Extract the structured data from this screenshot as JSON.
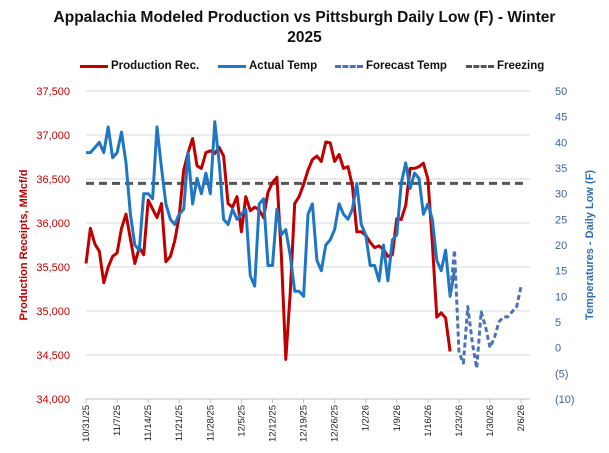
{
  "chart_data": {
    "type": "line",
    "title": "Appalachia Modeled Production vs Pittsburgh Daily Low (F) - Winter 2025",
    "title_line1": "Appalachia Modeled Production vs Pittsburgh Daily Low (F) - Winter",
    "title_line2": "2025",
    "ylabel": "Production  Receipts, MMcf/d",
    "y2label": "Temperatures - Daily Low (F)",
    "ylim": [
      34000,
      37500
    ],
    "y2lim": [
      -10,
      50
    ],
    "yticks": [
      "37,500",
      "37,000",
      "36,500",
      "36,000",
      "35,500",
      "35,000",
      "34,500",
      "34,000"
    ],
    "y2ticks": [
      "50",
      "45",
      "40",
      "35",
      "30",
      "25",
      "20",
      "15",
      "10",
      "5",
      "0",
      "(5)",
      "(10)"
    ],
    "xticks": [
      "10/31/25",
      "11/7/25",
      "11/14/25",
      "11/21/25",
      "11/28/25",
      "12/5/25",
      "12/12/25",
      "12/19/25",
      "12/26/25",
      "1/2/26",
      "1/9/26",
      "1/16/26",
      "1/23/26",
      "1/30/26",
      "2/6/26"
    ],
    "x_unit": "days since 10/31/25",
    "grid": true,
    "legend_position": "top",
    "legend": [
      {
        "name": "Production Rec.",
        "color": "#c00000",
        "style": "solid"
      },
      {
        "name": "Actual Temp",
        "color": "#1f77c4",
        "style": "solid"
      },
      {
        "name": "Forecast Temp",
        "color": "#4a72b8",
        "style": "dashed"
      },
      {
        "name": "Freezing",
        "color": "#555555",
        "style": "dashed"
      }
    ],
    "series": [
      {
        "name": "Production Rec.",
        "axis": "left",
        "color": "#c00000",
        "x": [
          0,
          1,
          2,
          3,
          4,
          5,
          6,
          7,
          8,
          9,
          10,
          11,
          12,
          13,
          14,
          15,
          16,
          17,
          18,
          19,
          20,
          21,
          22,
          23,
          24,
          25,
          26,
          27,
          28,
          29,
          30,
          31,
          32,
          33,
          34,
          35,
          36,
          37,
          38,
          39,
          40,
          41,
          42,
          43,
          44,
          45,
          46,
          47,
          48,
          49,
          50,
          51,
          52,
          53,
          54,
          55,
          56,
          57,
          58,
          59,
          60,
          61,
          62,
          63,
          64,
          65,
          66,
          67,
          68,
          69,
          70,
          71,
          72,
          73,
          74,
          75,
          76,
          77,
          78,
          79,
          80,
          81,
          82
        ],
        "values": [
          35540,
          35940,
          35760,
          35680,
          35320,
          35500,
          35620,
          35660,
          35940,
          36100,
          35820,
          35540,
          35720,
          35640,
          36260,
          36160,
          36060,
          36220,
          35560,
          35620,
          35800,
          36080,
          36600,
          36800,
          36960,
          36650,
          36620,
          36800,
          36820,
          36790,
          36860,
          36760,
          36220,
          36180,
          36300,
          35900,
          36300,
          36140,
          36180,
          36150,
          36060,
          36350,
          36460,
          36520,
          35620,
          34450,
          35200,
          36220,
          36300,
          36440,
          36600,
          36720,
          36760,
          36700,
          36920,
          36910,
          36700,
          36780,
          36620,
          36640,
          36420,
          35900,
          35900,
          35860,
          35780,
          35720,
          35740,
          35700,
          35620,
          35640,
          36050,
          36040,
          36200,
          36620,
          36620,
          36640,
          36680,
          36500,
          35780,
          34930,
          34980,
          34920,
          34540
        ]
      },
      {
        "name": "Actual Temp",
        "axis": "right",
        "color": "#1f77c4",
        "x": [
          0,
          1,
          2,
          3,
          4,
          5,
          6,
          7,
          8,
          9,
          10,
          11,
          12,
          13,
          14,
          15,
          16,
          17,
          18,
          19,
          20,
          21,
          22,
          23,
          24,
          25,
          26,
          27,
          28,
          29,
          30,
          31,
          32,
          33,
          34,
          35,
          36,
          37,
          38,
          39,
          40,
          41,
          42,
          43,
          44,
          45,
          46,
          47,
          48,
          49,
          50,
          51,
          52,
          53,
          54,
          55,
          56,
          57,
          58,
          59,
          60,
          61,
          62,
          63,
          64,
          65,
          66,
          67,
          68,
          69,
          70,
          71,
          72,
          73,
          74,
          75,
          76,
          77,
          78,
          79,
          80,
          81,
          82,
          83
        ],
        "values": [
          38,
          38,
          39,
          40,
          38,
          43,
          37,
          38,
          42,
          36,
          26,
          20,
          19,
          30,
          30,
          29,
          43,
          35,
          28,
          25,
          24,
          26,
          27,
          38,
          28,
          33,
          30,
          34,
          30,
          44,
          36,
          25,
          24,
          27,
          25,
          26,
          27,
          14,
          12,
          28,
          29,
          16,
          16,
          27,
          22,
          23,
          18,
          11,
          11,
          10,
          26,
          28,
          17,
          15,
          20,
          21,
          23,
          28,
          26,
          25,
          27,
          32,
          24,
          22,
          16,
          16,
          13,
          20,
          13,
          21,
          22,
          32,
          36,
          31,
          34,
          33,
          26,
          28,
          25,
          17,
          15,
          19,
          10,
          15
        ]
      },
      {
        "name": "Forecast Temp",
        "axis": "right",
        "color": "#4a72b8",
        "dashed": true,
        "x": [
          82,
          83,
          84,
          85,
          86,
          87,
          88,
          89,
          90,
          91,
          92,
          93,
          94,
          95,
          96,
          97,
          98
        ],
        "values": [
          10,
          19,
          -1,
          -3,
          8,
          1,
          -4,
          7,
          4,
          0,
          2,
          5,
          6,
          6,
          7,
          8,
          12
        ]
      },
      {
        "name": "Freezing",
        "axis": "right",
        "color": "#555555",
        "dashed": true,
        "x": [
          0,
          100
        ],
        "values": [
          32,
          32
        ]
      }
    ]
  }
}
